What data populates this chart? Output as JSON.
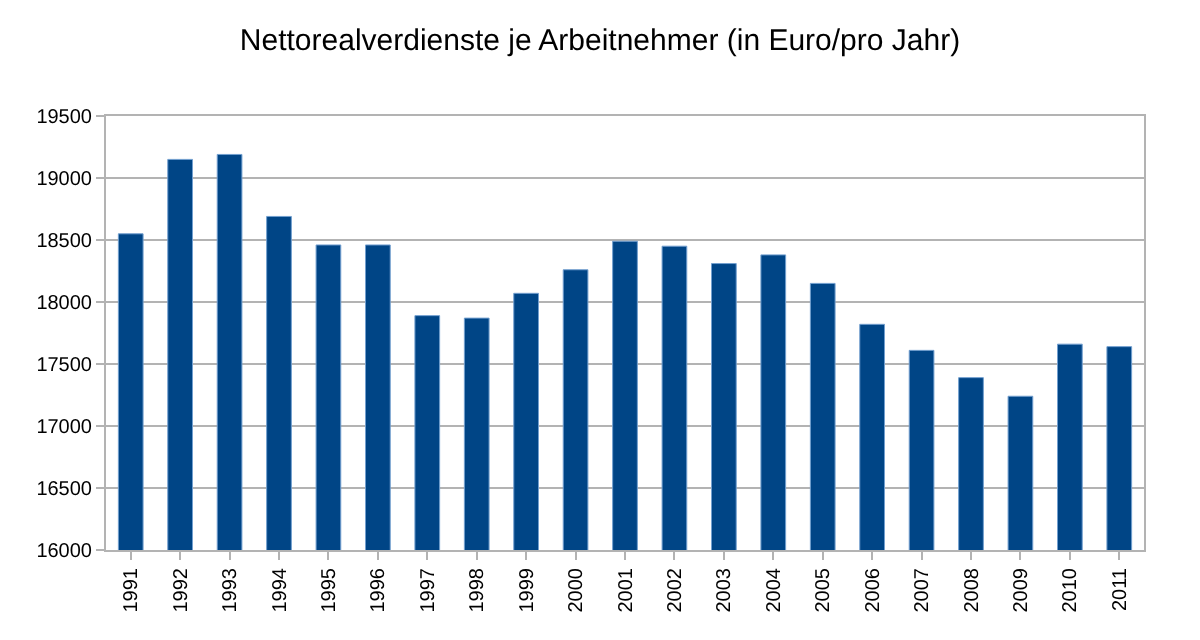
{
  "chart_data": {
    "type": "bar",
    "title": "Nettorealverdienste je Arbeitnehmer (in Euro/pro Jahr)",
    "categories": [
      "1991",
      "1992",
      "1993",
      "1994",
      "1995",
      "1996",
      "1997",
      "1998",
      "1999",
      "2000",
      "2001",
      "2002",
      "2003",
      "2004",
      "2005",
      "2006",
      "2007",
      "2008",
      "2009",
      "2010",
      "2011"
    ],
    "values": [
      18550,
      19150,
      19190,
      18690,
      18460,
      18460,
      17890,
      17870,
      18070,
      18260,
      18490,
      18450,
      18310,
      18380,
      18150,
      17820,
      17610,
      17390,
      17240,
      17660,
      17640
    ],
    "color": "#004586",
    "ylim": [
      16000,
      19500
    ],
    "yticks": [
      16000,
      16500,
      17000,
      17500,
      18000,
      18500,
      19000,
      19500
    ],
    "grid": "y",
    "legend": false
  }
}
